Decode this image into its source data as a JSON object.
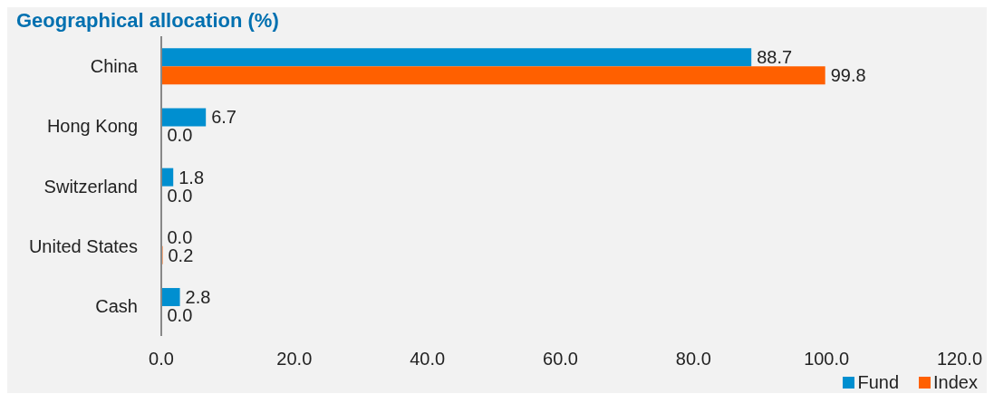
{
  "chart_data": {
    "type": "bar",
    "orientation": "horizontal",
    "title": "Geographical allocation (%)",
    "categories": [
      "China",
      "Hong Kong",
      "Switzerland",
      "United States",
      "Cash"
    ],
    "series": [
      {
        "name": "Fund",
        "color": "#008fd0",
        "values": [
          88.7,
          6.7,
          1.8,
          0,
          2.8
        ],
        "value_labels": [
          "88.7",
          "6.7",
          "1.8",
          "0.0",
          "2.8"
        ]
      },
      {
        "name": "Index",
        "color": "#ff6000",
        "values": [
          99.8,
          0,
          0,
          0.2,
          0
        ],
        "value_labels": [
          "99.8",
          "0.0",
          "0.0",
          "0.2",
          "0.0"
        ]
      }
    ],
    "xlim": [
      0,
      120
    ],
    "xticks": [
      {
        "value": 0,
        "label": "0.0"
      },
      {
        "value": 20,
        "label": "20.0"
      },
      {
        "value": 40,
        "label": "40.0"
      },
      {
        "value": 60,
        "label": "60.0"
      },
      {
        "value": 80,
        "label": "80.0"
      },
      {
        "value": 100,
        "label": "100.0"
      },
      {
        "value": 120,
        "label": "120.0"
      }
    ],
    "grid": false,
    "legend": "bottom right"
  }
}
